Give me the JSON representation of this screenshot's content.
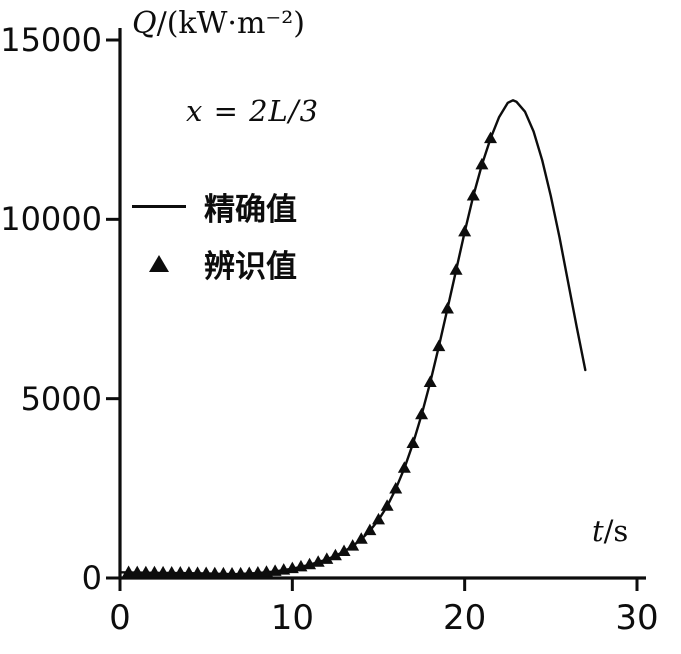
{
  "figure": {
    "y_axis_title_main": "Q",
    "y_axis_title_rest": "/(kW·m⁻²)",
    "x_axis_title_main": "t",
    "x_axis_title_rest": "/s",
    "annotation": "x = 2L/3"
  },
  "chart_data": {
    "type": "line",
    "title": "",
    "xlabel": "t/s",
    "ylabel": "Q/(kW·m⁻²)",
    "xlim": [
      0,
      30
    ],
    "ylim": [
      0,
      15000
    ],
    "grid": false,
    "legend_position": "upper-left",
    "x_ticks": [
      0,
      10,
      20,
      30
    ],
    "y_ticks": [
      0,
      5000,
      10000,
      15000
    ],
    "annotation": "x = 2L/3",
    "legend": [
      {
        "label": "精确值",
        "marker": "line"
      },
      {
        "label": "辨识值",
        "marker": "triangle"
      }
    ],
    "series": [
      {
        "name": "精确值",
        "type": "line",
        "color": "#0d0d0d",
        "points": [
          [
            0,
            160
          ],
          [
            0.5,
            155
          ],
          [
            1,
            150
          ],
          [
            1.5,
            148
          ],
          [
            2,
            145
          ],
          [
            2.5,
            143
          ],
          [
            3,
            140
          ],
          [
            3.5,
            138
          ],
          [
            4,
            135
          ],
          [
            4.5,
            130
          ],
          [
            5,
            125
          ],
          [
            5.5,
            120
          ],
          [
            6,
            115
          ],
          [
            6.5,
            110
          ],
          [
            7,
            115
          ],
          [
            7.5,
            125
          ],
          [
            8,
            140
          ],
          [
            8.5,
            160
          ],
          [
            9,
            185
          ],
          [
            9.5,
            220
          ],
          [
            10,
            260
          ],
          [
            10.5,
            310
          ],
          [
            11,
            370
          ],
          [
            11.5,
            440
          ],
          [
            12,
            520
          ],
          [
            12.5,
            620
          ],
          [
            13,
            740
          ],
          [
            13.5,
            890
          ],
          [
            14,
            1080
          ],
          [
            14.5,
            1320
          ],
          [
            15,
            1620
          ],
          [
            15.5,
            2000
          ],
          [
            16,
            2480
          ],
          [
            16.5,
            3060
          ],
          [
            17,
            3750
          ],
          [
            17.5,
            4550
          ],
          [
            18,
            5450
          ],
          [
            18.5,
            6450
          ],
          [
            19,
            7500
          ],
          [
            19.5,
            8580
          ],
          [
            20,
            9650
          ],
          [
            20.5,
            10650
          ],
          [
            21,
            11520
          ],
          [
            21.5,
            12250
          ],
          [
            22,
            12850
          ],
          [
            22.5,
            13250
          ],
          [
            22.8,
            13320
          ],
          [
            23,
            13280
          ],
          [
            23.5,
            13000
          ],
          [
            24,
            12450
          ],
          [
            24.5,
            11650
          ],
          [
            25,
            10650
          ],
          [
            25.5,
            9500
          ],
          [
            26,
            8250
          ],
          [
            26.5,
            7000
          ],
          [
            27,
            5800
          ]
        ]
      },
      {
        "name": "辨识值",
        "type": "scatter-triangle",
        "color": "#0d0d0d",
        "points": [
          [
            0.5,
            155
          ],
          [
            1,
            150
          ],
          [
            1.5,
            148
          ],
          [
            2,
            145
          ],
          [
            2.5,
            143
          ],
          [
            3,
            140
          ],
          [
            3.5,
            138
          ],
          [
            4,
            135
          ],
          [
            4.5,
            130
          ],
          [
            5,
            125
          ],
          [
            5.5,
            120
          ],
          [
            6,
            115
          ],
          [
            6.5,
            110
          ],
          [
            7,
            115
          ],
          [
            7.5,
            125
          ],
          [
            8,
            140
          ],
          [
            8.5,
            160
          ],
          [
            9,
            185
          ],
          [
            9.5,
            220
          ],
          [
            10,
            260
          ],
          [
            10.5,
            310
          ],
          [
            11,
            370
          ],
          [
            11.5,
            440
          ],
          [
            12,
            520
          ],
          [
            12.5,
            620
          ],
          [
            13,
            740
          ],
          [
            13.5,
            890
          ],
          [
            14,
            1080
          ],
          [
            14.5,
            1320
          ],
          [
            15,
            1620
          ],
          [
            15.5,
            2000
          ],
          [
            16,
            2480
          ],
          [
            16.5,
            3060
          ],
          [
            17,
            3750
          ],
          [
            17.5,
            4550
          ],
          [
            18,
            5450
          ],
          [
            18.5,
            6450
          ],
          [
            19,
            7500
          ],
          [
            19.5,
            8580
          ],
          [
            20,
            9650
          ],
          [
            20.5,
            10650
          ],
          [
            21,
            11520
          ],
          [
            21.5,
            12250
          ]
        ]
      }
    ]
  }
}
